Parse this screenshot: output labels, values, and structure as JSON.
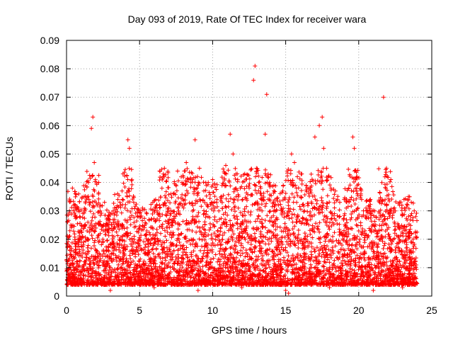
{
  "chart_data": {
    "type": "scatter",
    "title": "Day 093 of 2019, Rate Of TEC Index for receiver wara",
    "xlabel": "GPS time / hours",
    "ylabel": "ROTI / TECUs",
    "xlim": [
      0,
      25
    ],
    "ylim": [
      0,
      0.09
    ],
    "xticks": [
      0,
      5,
      10,
      15,
      20,
      25
    ],
    "yticks": [
      0,
      0.01,
      0.02,
      0.03,
      0.04,
      0.05,
      0.06,
      0.07,
      0.08,
      0.09
    ],
    "grid": true,
    "marker": "+",
    "color": "#ff0000",
    "series": [
      {
        "name": "ROTI",
        "x": [
          0.2,
          0.4,
          0.6,
          0.9,
          1.2,
          1.5,
          1.7,
          1.8,
          1.9,
          2.1,
          2.3,
          2.6,
          2.9,
          3.2,
          3.5,
          3.8,
          4.0,
          4.2,
          4.3,
          4.6,
          4.9,
          5.2,
          5.5,
          5.8,
          6.1,
          6.4,
          6.7,
          7.0,
          7.3,
          7.6,
          7.9,
          8.2,
          8.5,
          8.8,
          9.1,
          9.4,
          9.7,
          10.0,
          10.3,
          10.6,
          10.9,
          11.2,
          11.4,
          11.6,
          11.9,
          12.2,
          12.5,
          12.8,
          12.9,
          13.0,
          13.3,
          13.6,
          13.7,
          13.9,
          14.2,
          14.5,
          14.8,
          15.1,
          15.4,
          15.6,
          15.8,
          16.1,
          16.4,
          16.7,
          17.0,
          17.3,
          17.5,
          17.6,
          17.8,
          18.1,
          18.4,
          18.7,
          19.0,
          19.3,
          19.6,
          19.7,
          19.9,
          20.2,
          20.5,
          20.8,
          21.1,
          21.4,
          21.7,
          21.9,
          22.2,
          22.5,
          22.8,
          23.1,
          23.4,
          23.6,
          23.8,
          23.9,
          0.1,
          0.3,
          3.0,
          6.0,
          9.0,
          12.0,
          15.0,
          15.2,
          18.0,
          21.0,
          22.0,
          23.0
        ],
        "y": [
          0.03,
          0.038,
          0.036,
          0.028,
          0.035,
          0.04,
          0.059,
          0.063,
          0.047,
          0.032,
          0.03,
          0.033,
          0.028,
          0.03,
          0.036,
          0.037,
          0.031,
          0.055,
          0.052,
          0.033,
          0.028,
          0.031,
          0.029,
          0.027,
          0.034,
          0.028,
          0.045,
          0.031,
          0.036,
          0.044,
          0.04,
          0.047,
          0.04,
          0.055,
          0.045,
          0.037,
          0.04,
          0.041,
          0.034,
          0.035,
          0.046,
          0.057,
          0.05,
          0.043,
          0.038,
          0.043,
          0.038,
          0.076,
          0.081,
          0.045,
          0.038,
          0.057,
          0.071,
          0.04,
          0.039,
          0.032,
          0.037,
          0.044,
          0.05,
          0.047,
          0.042,
          0.043,
          0.039,
          0.037,
          0.056,
          0.06,
          0.063,
          0.052,
          0.045,
          0.038,
          0.037,
          0.033,
          0.034,
          0.038,
          0.056,
          0.052,
          0.039,
          0.034,
          0.031,
          0.034,
          0.03,
          0.027,
          0.07,
          0.045,
          0.041,
          0.03,
          0.033,
          0.034,
          0.035,
          0.033,
          0.03,
          0.028,
          0.02,
          0.025,
          0.002,
          0.003,
          0.002,
          0.003,
          0.002,
          0.001,
          0.003,
          0.002,
          0.004,
          0.003
        ]
      }
    ]
  }
}
